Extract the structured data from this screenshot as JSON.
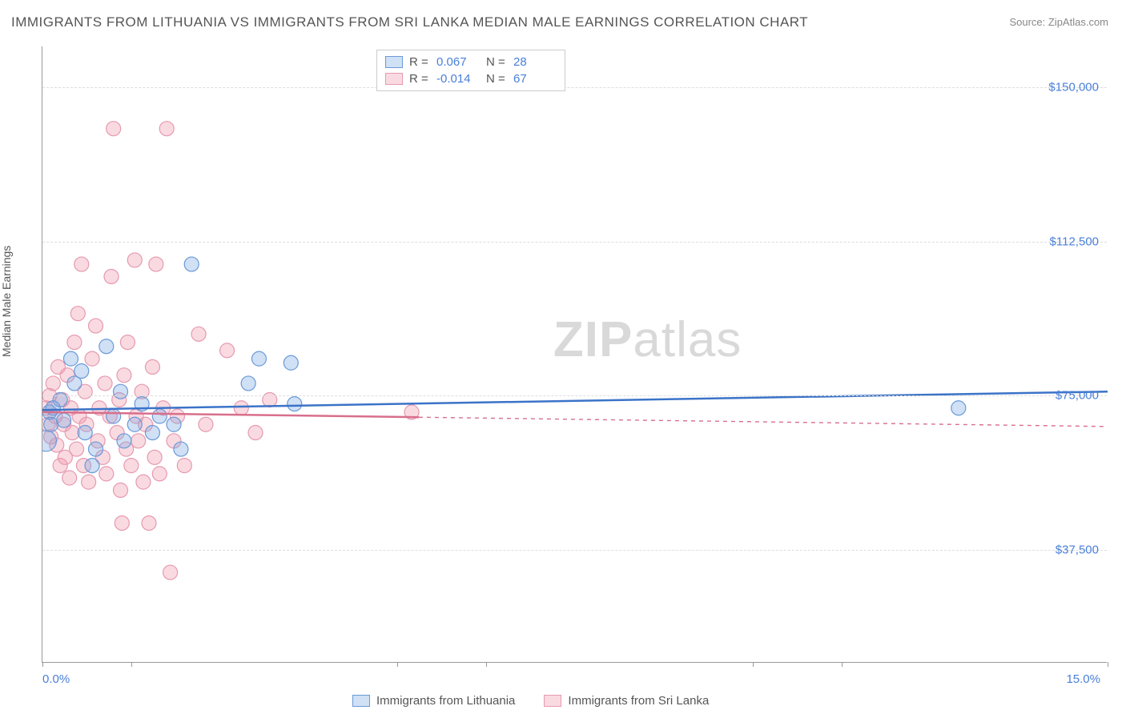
{
  "title": "IMMIGRANTS FROM LITHUANIA VS IMMIGRANTS FROM SRI LANKA MEDIAN MALE EARNINGS CORRELATION CHART",
  "source": "Source: ZipAtlas.com",
  "y_axis_title": "Median Male Earnings",
  "watermark_a": "ZIP",
  "watermark_b": "atlas",
  "x_axis": {
    "min_label": "0.0%",
    "max_label": "15.0%",
    "min": 0,
    "max": 15
  },
  "y_axis": {
    "min": 10000,
    "max": 160000,
    "ticks": [
      {
        "v": 37500,
        "label": "$37,500"
      },
      {
        "v": 75000,
        "label": "$75,000"
      },
      {
        "v": 112500,
        "label": "$112,500"
      },
      {
        "v": 150000,
        "label": "$150,000"
      }
    ]
  },
  "x_ticks": [
    0,
    1.25,
    5,
    6.25,
    10,
    11.25,
    15
  ],
  "colors": {
    "series_a_fill": "rgba(120,165,225,0.35)",
    "series_a_stroke": "#6a9ad8",
    "series_b_fill": "rgba(240,150,170,0.35)",
    "series_b_stroke": "#e59ab0",
    "trend_a": "#3b73c8",
    "trend_b": "#d86f8c",
    "text_blue": "#4a7fd8",
    "grid": "#dddddd"
  },
  "stat_legend": [
    {
      "series": "a",
      "r_label": "R =",
      "r": "0.067",
      "n_label": "N =",
      "n": "28"
    },
    {
      "series": "b",
      "r_label": "R =",
      "r": "-0.014",
      "n_label": "N =",
      "n": "67"
    }
  ],
  "bottom_legend": [
    {
      "series": "a",
      "label": "Immigrants from Lithuania"
    },
    {
      "series": "b",
      "label": "Immigrants from Sri Lanka"
    }
  ],
  "marker_radius": 9,
  "trend_lines": {
    "a": {
      "x1": 0,
      "y1": 71500,
      "x2": 15,
      "y2": 76000,
      "solid_until": 15
    },
    "b": {
      "x1": 0,
      "y1": 71000,
      "x2": 15,
      "y2": 67500,
      "solid_until": 5.3
    }
  },
  "series_a": [
    {
      "x": 0.05,
      "y": 64000,
      "r": 13
    },
    {
      "x": 0.1,
      "y": 71000
    },
    {
      "x": 0.12,
      "y": 68000
    },
    {
      "x": 0.15,
      "y": 72000
    },
    {
      "x": 0.25,
      "y": 74000
    },
    {
      "x": 0.3,
      "y": 69000
    },
    {
      "x": 0.4,
      "y": 84000
    },
    {
      "x": 0.45,
      "y": 78000
    },
    {
      "x": 0.55,
      "y": 81000
    },
    {
      "x": 0.6,
      "y": 66000
    },
    {
      "x": 0.75,
      "y": 62000
    },
    {
      "x": 0.9,
      "y": 87000
    },
    {
      "x": 1.0,
      "y": 70000
    },
    {
      "x": 1.1,
      "y": 76000
    },
    {
      "x": 1.15,
      "y": 64000
    },
    {
      "x": 1.3,
      "y": 68000
    },
    {
      "x": 1.4,
      "y": 73000
    },
    {
      "x": 1.55,
      "y": 66000
    },
    {
      "x": 1.65,
      "y": 70000
    },
    {
      "x": 1.85,
      "y": 68000
    },
    {
      "x": 1.95,
      "y": 62000
    },
    {
      "x": 2.1,
      "y": 107000
    },
    {
      "x": 2.9,
      "y": 78000
    },
    {
      "x": 3.05,
      "y": 84000
    },
    {
      "x": 3.5,
      "y": 83000
    },
    {
      "x": 3.55,
      "y": 73000
    },
    {
      "x": 12.9,
      "y": 72000
    },
    {
      "x": 0.7,
      "y": 58000
    }
  ],
  "series_b": [
    {
      "x": 0.05,
      "y": 72000
    },
    {
      "x": 0.08,
      "y": 68000
    },
    {
      "x": 0.1,
      "y": 75000
    },
    {
      "x": 0.12,
      "y": 65000
    },
    {
      "x": 0.15,
      "y": 78000
    },
    {
      "x": 0.18,
      "y": 70000
    },
    {
      "x": 0.2,
      "y": 63000
    },
    {
      "x": 0.22,
      "y": 82000
    },
    {
      "x": 0.25,
      "y": 58000
    },
    {
      "x": 0.28,
      "y": 74000
    },
    {
      "x": 0.3,
      "y": 68000
    },
    {
      "x": 0.32,
      "y": 60000
    },
    {
      "x": 0.35,
      "y": 80000
    },
    {
      "x": 0.38,
      "y": 55000
    },
    {
      "x": 0.4,
      "y": 72000
    },
    {
      "x": 0.42,
      "y": 66000
    },
    {
      "x": 0.45,
      "y": 88000
    },
    {
      "x": 0.48,
      "y": 62000
    },
    {
      "x": 0.5,
      "y": 95000
    },
    {
      "x": 0.52,
      "y": 70000
    },
    {
      "x": 0.55,
      "y": 107000
    },
    {
      "x": 0.58,
      "y": 58000
    },
    {
      "x": 0.6,
      "y": 76000
    },
    {
      "x": 0.62,
      "y": 68000
    },
    {
      "x": 0.65,
      "y": 54000
    },
    {
      "x": 0.7,
      "y": 84000
    },
    {
      "x": 0.75,
      "y": 92000
    },
    {
      "x": 0.78,
      "y": 64000
    },
    {
      "x": 0.8,
      "y": 72000
    },
    {
      "x": 0.85,
      "y": 60000
    },
    {
      "x": 0.88,
      "y": 78000
    },
    {
      "x": 0.9,
      "y": 56000
    },
    {
      "x": 0.95,
      "y": 70000
    },
    {
      "x": 0.97,
      "y": 104000
    },
    {
      "x": 1.0,
      "y": 140000
    },
    {
      "x": 1.05,
      "y": 66000
    },
    {
      "x": 1.08,
      "y": 74000
    },
    {
      "x": 1.1,
      "y": 52000
    },
    {
      "x": 1.12,
      "y": 44000
    },
    {
      "x": 1.15,
      "y": 80000
    },
    {
      "x": 1.18,
      "y": 62000
    },
    {
      "x": 1.2,
      "y": 88000
    },
    {
      "x": 1.25,
      "y": 58000
    },
    {
      "x": 1.3,
      "y": 108000
    },
    {
      "x": 1.32,
      "y": 70000
    },
    {
      "x": 1.35,
      "y": 64000
    },
    {
      "x": 1.4,
      "y": 76000
    },
    {
      "x": 1.42,
      "y": 54000
    },
    {
      "x": 1.45,
      "y": 68000
    },
    {
      "x": 1.5,
      "y": 44000
    },
    {
      "x": 1.55,
      "y": 82000
    },
    {
      "x": 1.58,
      "y": 60000
    },
    {
      "x": 1.6,
      "y": 107000
    },
    {
      "x": 1.65,
      "y": 56000
    },
    {
      "x": 1.7,
      "y": 72000
    },
    {
      "x": 1.75,
      "y": 140000
    },
    {
      "x": 1.8,
      "y": 32000
    },
    {
      "x": 1.85,
      "y": 64000
    },
    {
      "x": 1.9,
      "y": 70000
    },
    {
      "x": 2.0,
      "y": 58000
    },
    {
      "x": 2.2,
      "y": 90000
    },
    {
      "x": 2.3,
      "y": 68000
    },
    {
      "x": 2.6,
      "y": 86000
    },
    {
      "x": 2.8,
      "y": 72000
    },
    {
      "x": 3.0,
      "y": 66000
    },
    {
      "x": 3.2,
      "y": 74000
    },
    {
      "x": 5.2,
      "y": 71000
    }
  ]
}
